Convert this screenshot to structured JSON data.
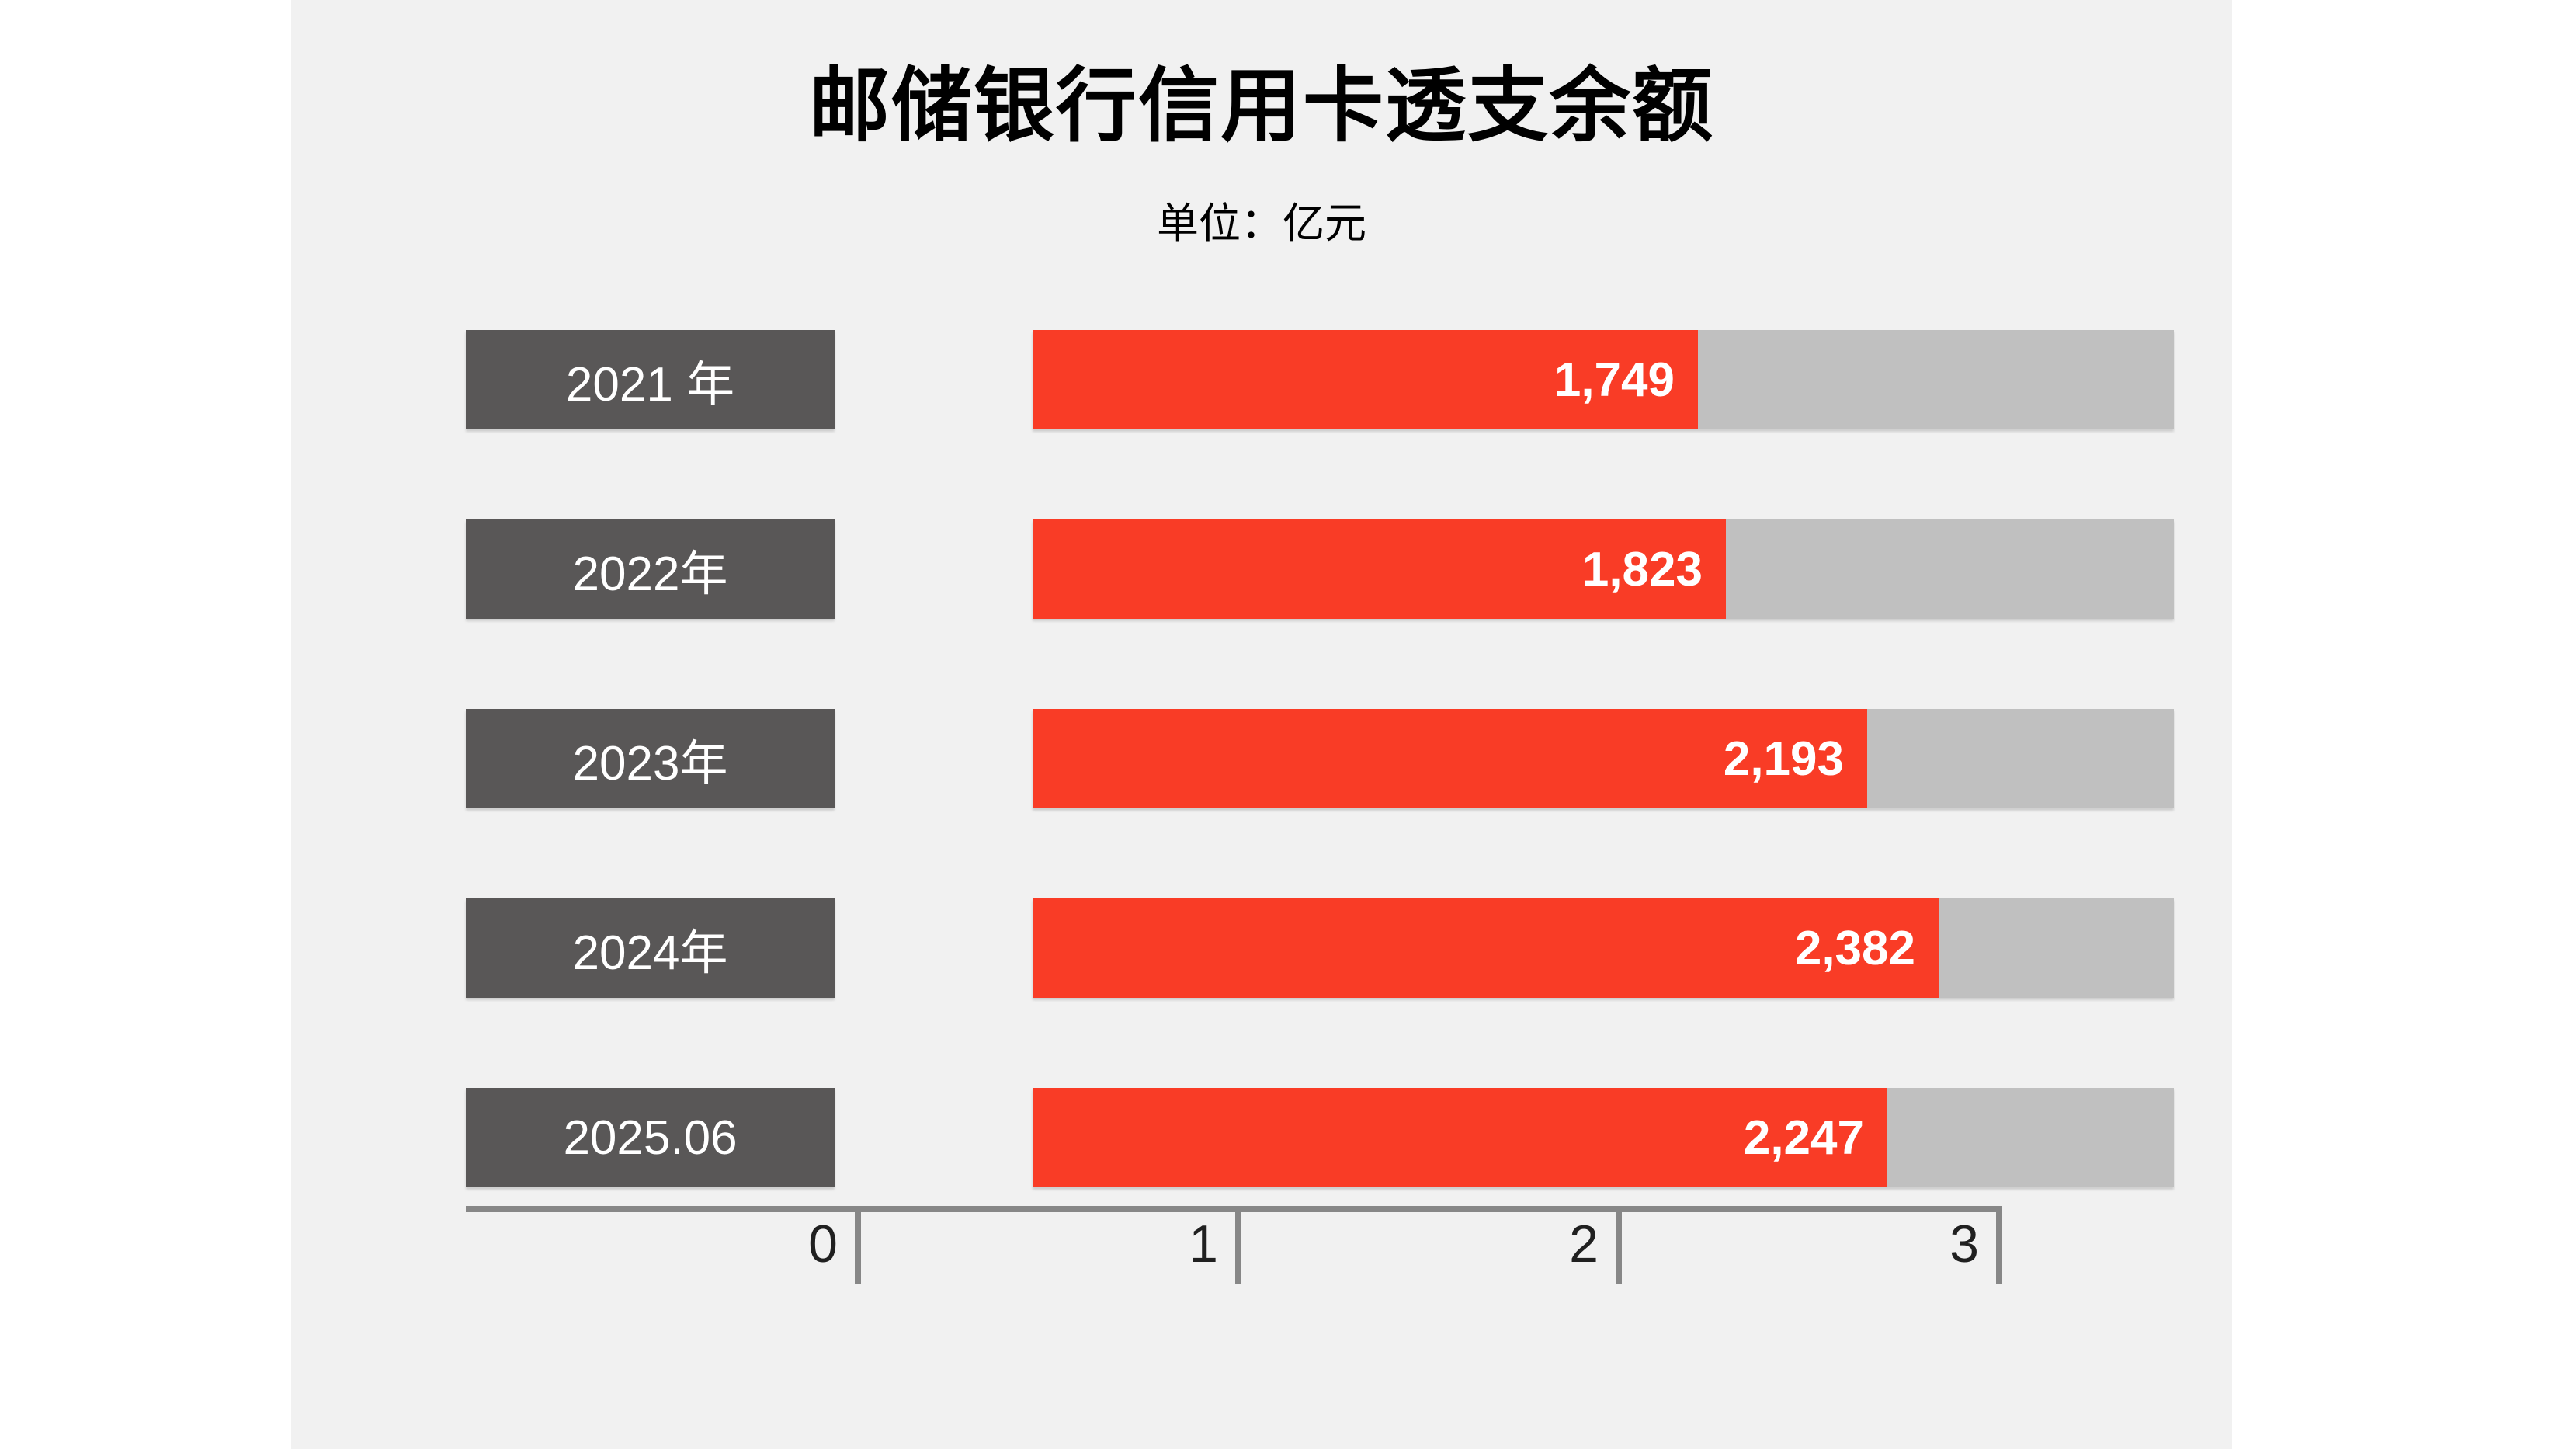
{
  "page": {
    "title": "邮储银行信用卡透支余额",
    "subtitle": "单位：亿元"
  },
  "chart_data": {
    "type": "bar",
    "orientation": "horizontal",
    "title": "邮储银行信用卡透支余额",
    "unit_label": "单位：亿元",
    "categories": [
      "2021 年",
      "2022年",
      "2023年",
      "2024年",
      "2025.06"
    ],
    "values": [
      1749,
      1823,
      2193,
      2382,
      2247
    ],
    "value_labels": [
      "1,749",
      "1,823",
      "2,193",
      "2,382",
      "2,247"
    ],
    "axis": {
      "tick_labels": [
        "0",
        "1",
        "2",
        "3"
      ],
      "tick_values": [
        0,
        1000,
        2000,
        3000
      ],
      "max_value": 3000
    },
    "grid": false,
    "legend": "none",
    "colors": {
      "bar_fill": "#f93c26",
      "bar_track": "#c0c0c0",
      "label_box": "#595757",
      "axis_line": "#878787",
      "band_background": "#f1f1f1",
      "value_text": "#ffffff",
      "category_text": "#ffffff",
      "tick_text": "#202020",
      "title_text": "#000000"
    }
  }
}
